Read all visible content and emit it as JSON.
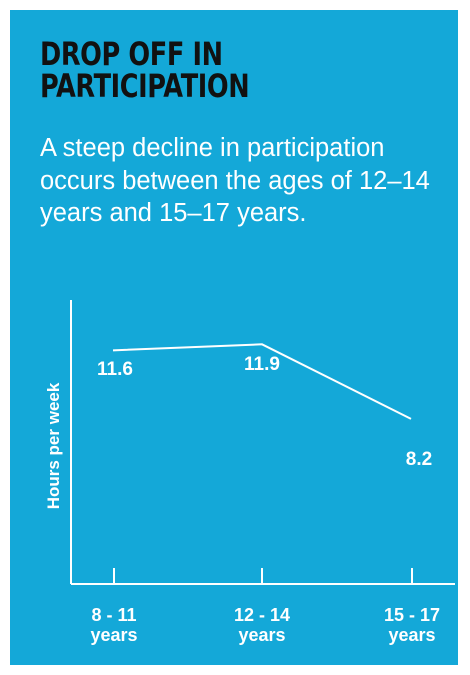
{
  "card": {
    "background": "#14a8d8",
    "title_color": "#111111",
    "text_color": "#ffffff"
  },
  "header": {
    "title_line1": "DROP OFF IN",
    "title_line2": "PARTICIPATION",
    "subtitle": "A steep decline in participation occurs between the ages of 12–14 years and 15–17 years."
  },
  "chart_data": {
    "type": "line",
    "title": "",
    "ylabel": "Hours per week",
    "categories": [
      {
        "line1": "8 - 11",
        "line2": "years"
      },
      {
        "line1": "12 - 14",
        "line2": "years"
      },
      {
        "line1": "15 - 17",
        "line2": "years"
      }
    ],
    "values": [
      11.6,
      11.9,
      8.2
    ],
    "data_labels": [
      "11.6",
      "11.9",
      "8.2"
    ],
    "ylim": [
      0,
      14.1
    ],
    "grid": false,
    "legend": "none"
  }
}
